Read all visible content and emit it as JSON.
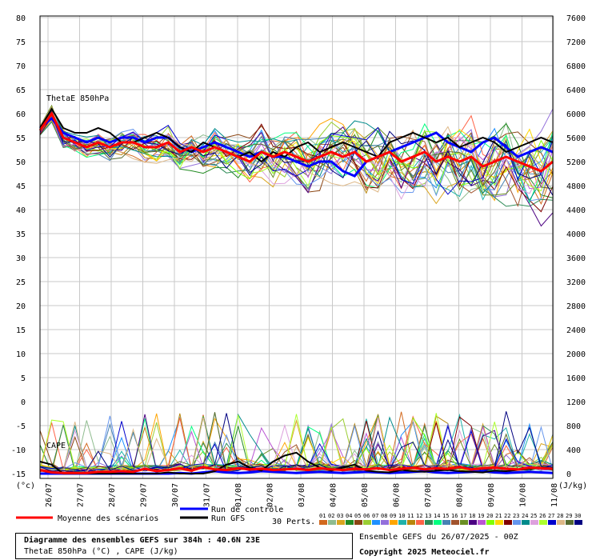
{
  "chart_data": {
    "type": "line",
    "series_label_top": "ThetaE 850hPa",
    "series_label_bottom": "CAPE",
    "left_axis": {
      "ticks": [
        80,
        75,
        70,
        65,
        60,
        55,
        50,
        45,
        40,
        35,
        30,
        25,
        20,
        15,
        10,
        5,
        0,
        -5,
        -10,
        -15
      ],
      "unit": "(°c)",
      "ylim": [
        -15,
        80
      ]
    },
    "right_axis": {
      "ticks": [
        7600,
        7200,
        6800,
        6400,
        6000,
        5600,
        5200,
        4800,
        4400,
        4000,
        3600,
        3200,
        2800,
        2400,
        2000,
        1600,
        1200,
        800,
        400,
        0
      ],
      "unit": "(J/kg)",
      "ylim": [
        0,
        7600
      ]
    },
    "x_dates": [
      "26/07",
      "27/07",
      "28/07",
      "29/07",
      "30/07",
      "31/07",
      "01/08",
      "02/08",
      "03/08",
      "04/08",
      "05/08",
      "06/08",
      "07/08",
      "08/08",
      "09/08",
      "10/08",
      "11/08"
    ],
    "grid": true,
    "mean_thetae": [
      56.5,
      60,
      55,
      54,
      53,
      54,
      53,
      54,
      54,
      53,
      53,
      54,
      52,
      53,
      52,
      53,
      52,
      51,
      50,
      52,
      51,
      52,
      51,
      50,
      51,
      52,
      51,
      52,
      50,
      51,
      52,
      50,
      51,
      52,
      50,
      51,
      50,
      51,
      49,
      50,
      51,
      50,
      49,
      48,
      50
    ],
    "control_thetae": [
      57,
      59,
      56,
      55,
      54,
      55,
      54,
      55,
      55,
      54,
      55,
      55,
      53,
      52,
      53,
      54,
      53,
      52,
      51,
      52,
      51,
      51,
      50,
      49,
      50,
      50,
      48,
      47,
      50,
      51,
      52,
      53,
      54,
      55,
      56,
      54,
      53,
      52,
      54,
      55,
      53,
      51,
      52,
      53,
      52
    ],
    "gfs_thetae": [
      57,
      61,
      57,
      56,
      56,
      57,
      56,
      54,
      54,
      55,
      56,
      55,
      53,
      52,
      54,
      53,
      52,
      51,
      52,
      50,
      52,
      51,
      53,
      54,
      52,
      53,
      54,
      53,
      52,
      51,
      54,
      55,
      56,
      55,
      54,
      55,
      53,
      54,
      55,
      54,
      52,
      53,
      54,
      55,
      54
    ],
    "mean_cape": [
      60,
      20,
      10,
      10,
      10,
      30,
      30,
      40,
      30,
      80,
      40,
      60,
      90,
      50,
      110,
      70,
      60,
      90,
      70,
      80,
      60,
      70,
      80,
      60,
      90,
      70,
      60,
      80,
      70,
      90,
      60,
      80,
      100,
      70,
      90,
      80,
      110,
      70,
      90,
      100,
      80,
      70,
      100,
      90,
      80
    ],
    "control_cape": [
      0,
      0,
      0,
      0,
      0,
      0,
      0,
      0,
      0,
      0,
      0,
      0,
      10,
      0,
      20,
      40,
      20,
      10,
      20,
      40,
      30,
      20,
      10,
      20,
      30,
      20,
      10,
      20,
      30,
      20,
      10,
      20,
      30,
      40,
      20,
      10,
      20,
      30,
      40,
      20,
      10,
      20,
      30,
      20,
      10
    ],
    "gfs_cape": [
      200,
      150,
      0,
      0,
      0,
      0,
      0,
      0,
      0,
      0,
      0,
      20,
      0,
      0,
      0,
      40,
      150,
      200,
      100,
      50,
      200,
      300,
      350,
      200,
      100,
      50,
      100,
      150,
      50,
      30,
      20,
      60,
      40,
      30,
      50,
      60,
      40,
      30,
      20,
      50,
      40,
      60,
      80,
      100,
      80
    ]
  },
  "legend": {
    "mean": "Moyenne des scénarios",
    "control": "Run de contrôle",
    "gfs": "Run GFS",
    "perts": "30 Perts.",
    "pert_labels": [
      "01",
      "02",
      "03",
      "04",
      "05",
      "06",
      "07",
      "08",
      "09",
      "10",
      "11",
      "12",
      "13",
      "14",
      "15",
      "16",
      "17",
      "18",
      "19",
      "20",
      "21",
      "22",
      "23",
      "24",
      "25",
      "26",
      "27",
      "28",
      "29",
      "30"
    ],
    "pert_colors": [
      "#d2691e",
      "#8fbc8f",
      "#daa520",
      "#228b22",
      "#8b4513",
      "#9acd32",
      "#1e90ff",
      "#9370db",
      "#ffa500",
      "#20b2aa",
      "#b8860b",
      "#ff6347",
      "#2e8b57",
      "#00ff7f",
      "#4682b4",
      "#a0522d",
      "#6b8e23",
      "#4b0082",
      "#ba55d3",
      "#7fff00",
      "#ffd700",
      "#800000",
      "#6495ed",
      "#008b8b",
      "#dda0dd",
      "#adff2f",
      "#0000cd",
      "#deb887",
      "#556b2f",
      "#000080"
    ]
  },
  "info": {
    "title": "Diagramme des ensembles GEFS sur 384h : 40.6N 23E",
    "subtitle": "ThetaE 850hPa (°C) , CAPE (J/kg)",
    "run": "Ensemble GEFS du 26/07/2025 - 00Z",
    "copyright": "Copyright 2025 Meteociel.fr"
  }
}
